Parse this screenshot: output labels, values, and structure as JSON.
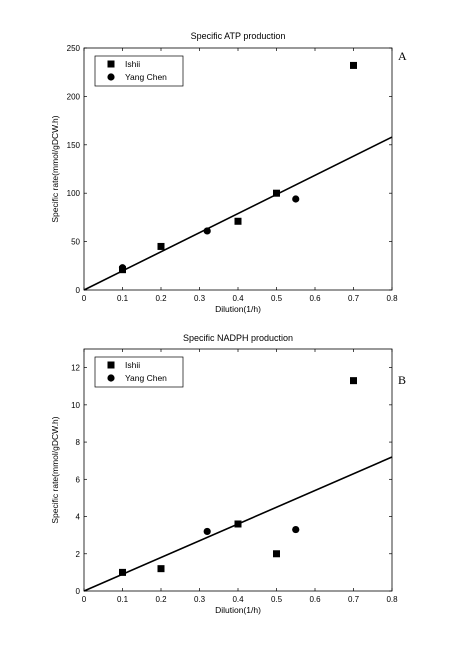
{
  "chart_data": [
    {
      "type": "scatter",
      "panel_letter": "A",
      "title": "Specific ATP production",
      "xlabel": "Dilution(1/h)",
      "ylabel": "Specific rate(mmol/gDCW.h)",
      "xlim": [
        0,
        0.8
      ],
      "ylim": [
        0,
        250
      ],
      "xticks": [
        0,
        0.1,
        0.2,
        0.3,
        0.4,
        0.5,
        0.6,
        0.7,
        0.8
      ],
      "xtick_labels": [
        "0",
        "0.1",
        "0.2",
        "0.3",
        "0.4",
        "0.5",
        "0.6",
        "0.7",
        "0.8"
      ],
      "yticks": [
        0,
        50,
        100,
        150,
        200,
        250
      ],
      "ytick_labels": [
        "0",
        "50",
        "100",
        "150",
        "200",
        "250"
      ],
      "legend_position": "top-left",
      "grid": false,
      "series": [
        {
          "name": "Ishii",
          "marker": "square",
          "x": [
            0.1,
            0.2,
            0.4,
            0.5,
            0.7
          ],
          "y": [
            21,
            45,
            71,
            100,
            232
          ]
        },
        {
          "name": "Yang Chen",
          "marker": "circle",
          "x": [
            0.1,
            0.32,
            0.55
          ],
          "y": [
            23,
            61,
            94
          ]
        }
      ],
      "fit_line": {
        "x": [
          0,
          0.8
        ],
        "y": [
          0,
          158
        ]
      }
    },
    {
      "type": "scatter",
      "panel_letter": "B",
      "title": "Specific NADPH production",
      "xlabel": "Dilution(1/h)",
      "ylabel": "Specific rate(mmol/gDCW.h)",
      "xlim": [
        0,
        0.8
      ],
      "ylim": [
        0,
        13
      ],
      "xticks": [
        0,
        0.1,
        0.2,
        0.3,
        0.4,
        0.5,
        0.6,
        0.7,
        0.8
      ],
      "xtick_labels": [
        "0",
        "0.1",
        "0.2",
        "0.3",
        "0.4",
        "0.5",
        "0.6",
        "0.7",
        "0.8"
      ],
      "yticks": [
        0,
        2,
        4,
        6,
        8,
        10,
        12
      ],
      "ytick_labels": [
        "0",
        "2",
        "4",
        "6",
        "8",
        "10",
        "12"
      ],
      "legend_position": "top-left",
      "grid": false,
      "series": [
        {
          "name": "Ishii",
          "marker": "square",
          "x": [
            0.1,
            0.2,
            0.4,
            0.5,
            0.7
          ],
          "y": [
            1.0,
            1.2,
            3.6,
            2.0,
            11.3
          ]
        },
        {
          "name": "Yang Chen",
          "marker": "circle",
          "x": [
            0.32,
            0.55
          ],
          "y": [
            3.2,
            3.3
          ]
        }
      ],
      "fit_line": {
        "x": [
          0,
          0.8
        ],
        "y": [
          0,
          7.2
        ]
      }
    }
  ]
}
